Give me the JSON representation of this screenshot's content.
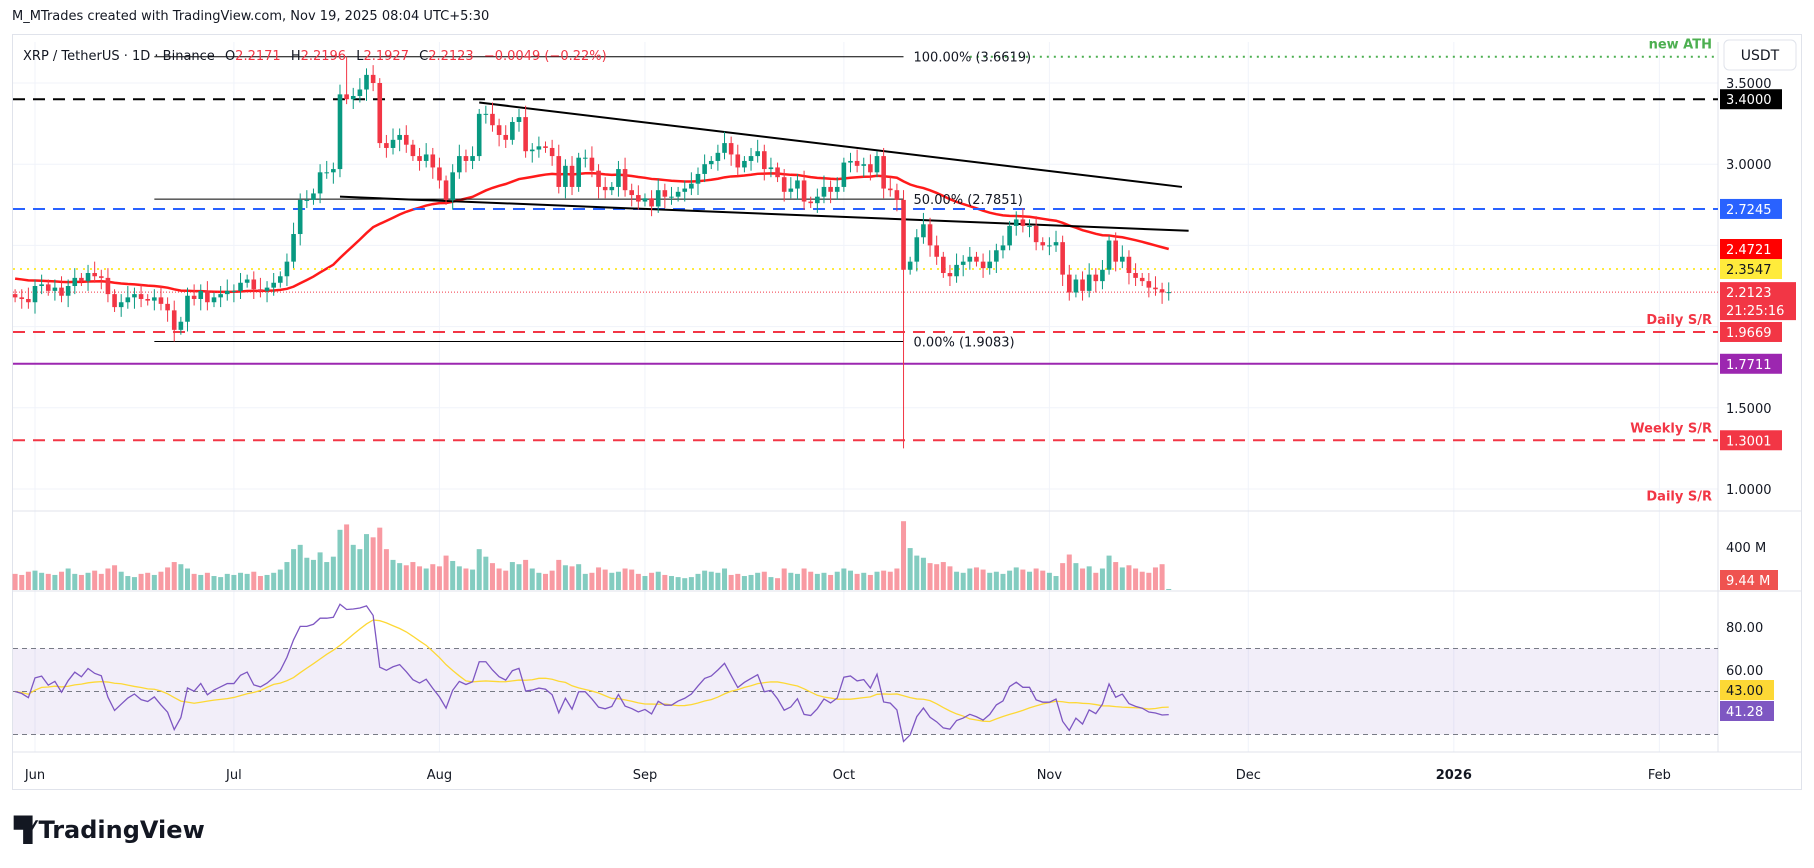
{
  "caption": "M_MTrades created with TradingView.com, Nov 19, 2025 08:04 UTC+5:30",
  "legend": {
    "symbol": "XRP / TetherUS · 1D · Binance",
    "o_label": "O",
    "o": "2.2171",
    "h_label": "H",
    "h": "2.2196",
    "l_label": "L",
    "l": "2.1927",
    "c_label": "C",
    "c": "2.2123",
    "change": "−0.0049 (−0.22%)"
  },
  "currency_button": "USDT",
  "brand": "TradingView",
  "colors": {
    "up": "#089981",
    "down": "#f23645",
    "ma": "#ff1a1a",
    "rsi": "#7e57c2",
    "rsi_ma": "#fdd835"
  },
  "chart_data": [
    {
      "type": "candlestick",
      "title": "XRP / TetherUS 1D Binance",
      "start_date": "2025-05-29",
      "ylim": [
        0.8,
        3.75
      ],
      "yticks": [
        "3.5000",
        "3.0000",
        "1.5000",
        "1.0000"
      ],
      "ytick_values": [
        3.5,
        3.0,
        1.5,
        1.0
      ],
      "xticks": [
        {
          "label": "Jun",
          "date": "2025-06-01"
        },
        {
          "label": "Jul",
          "date": "2025-07-01"
        },
        {
          "label": "Aug",
          "date": "2025-08-01"
        },
        {
          "label": "Sep",
          "date": "2025-09-01"
        },
        {
          "label": "Oct",
          "date": "2025-10-01"
        },
        {
          "label": "Nov",
          "date": "2025-11-01"
        },
        {
          "label": "Dec",
          "date": "2025-12-01"
        },
        {
          "label": "2026",
          "date": "2026-01-01"
        },
        {
          "label": "Feb",
          "date": "2026-02-01"
        }
      ],
      "closes": [
        2.18,
        2.17,
        2.15,
        2.25,
        2.26,
        2.22,
        2.24,
        2.19,
        2.25,
        2.3,
        2.28,
        2.33,
        2.31,
        2.3,
        2.2,
        2.12,
        2.15,
        2.18,
        2.2,
        2.17,
        2.16,
        2.18,
        2.14,
        2.1,
        1.98,
        2.03,
        2.19,
        2.17,
        2.22,
        2.15,
        2.18,
        2.2,
        2.22,
        2.22,
        2.27,
        2.29,
        2.23,
        2.22,
        2.24,
        2.27,
        2.31,
        2.4,
        2.57,
        2.78,
        2.78,
        2.82,
        2.95,
        2.95,
        2.97,
        3.43,
        3.4,
        3.42,
        3.46,
        3.55,
        3.5,
        3.13,
        3.1,
        3.15,
        3.18,
        3.12,
        3.05,
        3.02,
        3.06,
        2.98,
        2.9,
        2.78,
        2.95,
        3.05,
        3.02,
        3.05,
        3.31,
        3.31,
        3.24,
        3.18,
        3.15,
        3.26,
        3.29,
        3.08,
        3.09,
        3.11,
        3.1,
        3.05,
        2.86,
        2.99,
        2.86,
        3.04,
        3.04,
        2.96,
        2.86,
        2.84,
        2.86,
        2.97,
        2.84,
        2.81,
        2.77,
        2.79,
        2.74,
        2.84,
        2.8,
        2.8,
        2.83,
        2.85,
        2.88,
        2.94,
        3.0,
        3.02,
        3.07,
        3.13,
        3.06,
        2.98,
        3.02,
        3.05,
        3.08,
        2.97,
        2.98,
        2.92,
        2.83,
        2.85,
        2.9,
        2.77,
        2.76,
        2.8,
        2.86,
        2.83,
        2.86,
        3.01,
        3.02,
        2.99,
        3.0,
        2.95,
        3.05,
        2.85,
        2.84,
        2.78,
        2.35,
        2.4,
        2.55,
        2.63,
        2.5,
        2.43,
        2.33,
        2.31,
        2.38,
        2.4,
        2.43,
        2.4,
        2.36,
        2.4,
        2.47,
        2.5,
        2.62,
        2.66,
        2.62,
        2.62,
        2.52,
        2.5,
        2.5,
        2.52,
        2.32,
        2.21,
        2.29,
        2.22,
        2.32,
        2.28,
        2.35,
        2.53,
        2.4,
        2.43,
        2.33,
        2.3,
        2.28,
        2.24,
        2.23,
        2.21,
        2.2123
      ],
      "wick_overrides": [
        {
          "date": "2025-06-22",
          "low": 1.9083
        },
        {
          "date": "2025-07-18",
          "high": 3.6619
        },
        {
          "date": "2025-10-10",
          "low": 1.25
        }
      ],
      "ma_label": "2.4721",
      "horizontal_levels": [
        {
          "name": "ath-line",
          "price": 3.6619,
          "color": "#4caf50",
          "style": "dotted",
          "from": "2025-10-20"
        },
        {
          "name": "resistance-3-40",
          "price": 3.4,
          "color": "#000000",
          "style": "dashed",
          "label": "3.4000",
          "tag_bg": "#000000",
          "tag_fg": "#ffffff"
        },
        {
          "name": "level-2-7245",
          "price": 2.7245,
          "color": "#2962ff",
          "style": "dashed",
          "label": "2.7245",
          "tag_bg": "#2962ff",
          "tag_fg": "#ffffff"
        },
        {
          "name": "level-2-3547",
          "price": 2.3547,
          "color": "#ffeb3b",
          "style": "dotted",
          "label": "2.3547",
          "tag_bg": "#ffeb3b",
          "tag_fg": "#131722"
        },
        {
          "name": "last-price",
          "price": 2.2123,
          "color": "#f23645",
          "style": "fine",
          "label": "2.2123",
          "sub": "21:25:16",
          "tag_bg": "#f23645",
          "tag_fg": "#ffffff"
        },
        {
          "name": "daily-sr",
          "price": 1.9669,
          "color": "#f23645",
          "style": "dashed",
          "label": "1.9669",
          "tag_bg": "#f23645",
          "tag_fg": "#ffffff"
        },
        {
          "name": "level-1-7711",
          "price": 1.7711,
          "color": "#9c27b0",
          "style": "solid",
          "label": "1.7711",
          "tag_bg": "#9c27b0",
          "tag_fg": "#ffffff"
        },
        {
          "name": "weekly-sr",
          "price": 1.3001,
          "color": "#f23645",
          "style": "dashed",
          "label": "1.3001",
          "tag_bg": "#f23645",
          "tag_fg": "#ffffff"
        }
      ],
      "annotations": [
        {
          "text": "new ATH",
          "price": 3.6619,
          "color": "#4caf50"
        },
        {
          "text": "Daily S/R",
          "price": 1.9669,
          "color": "#f23645"
        },
        {
          "text": "Weekly S/R",
          "price": 1.3001,
          "color": "#f23645"
        },
        {
          "text": "Daily S/R",
          "price": 0.88,
          "color": "#f23645"
        }
      ],
      "fib": {
        "from": "2025-06-19",
        "to": "2025-10-10",
        "levels": [
          {
            "price": 3.6619,
            "label": "100.00% (3.6619)"
          },
          {
            "price": 2.7851,
            "label": "50.00% (2.7851)"
          },
          {
            "price": 1.9083,
            "label": "0.00% (1.9083)"
          }
        ]
      },
      "trendlines": [
        {
          "name": "upper-trendline",
          "p1": {
            "date": "2025-08-07",
            "price": 3.38
          },
          "p2": {
            "date": "2025-11-21",
            "price": 2.86
          }
        },
        {
          "name": "lower-trendline",
          "p1": {
            "date": "2025-07-17",
            "price": 2.8
          },
          "p2": {
            "date": "2025-11-22",
            "price": 2.59
          }
        }
      ]
    },
    {
      "type": "bar",
      "title": "Volume",
      "unit": "M",
      "ytick": "400 M",
      "ytick_value": 400,
      "last_label": "9.44 M",
      "values": [
        150,
        140,
        170,
        180,
        160,
        150,
        140,
        170,
        200,
        150,
        140,
        160,
        180,
        150,
        200,
        230,
        170,
        130,
        120,
        150,
        160,
        140,
        170,
        210,
        260,
        240,
        200,
        150,
        140,
        160,
        130,
        120,
        150,
        140,
        160,
        150,
        170,
        130,
        140,
        160,
        190,
        260,
        380,
        420,
        300,
        280,
        350,
        260,
        310,
        560,
        610,
        420,
        380,
        520,
        490,
        580,
        380,
        280,
        250,
        230,
        260,
        220,
        200,
        240,
        220,
        320,
        270,
        220,
        200,
        190,
        380,
        310,
        250,
        200,
        180,
        260,
        240,
        280,
        200,
        160,
        150,
        180,
        280,
        230,
        220,
        240,
        150,
        160,
        210,
        190,
        160,
        170,
        200,
        190,
        150,
        130,
        160,
        170,
        140,
        130,
        120,
        110,
        120,
        150,
        180,
        170,
        160,
        200,
        140,
        150,
        130,
        140,
        160,
        170,
        120,
        110,
        200,
        160,
        150,
        200,
        170,
        150,
        160,
        140,
        170,
        200,
        180,
        150,
        160,
        140,
        170,
        180,
        170,
        200,
        640,
        390,
        320,
        300,
        250,
        240,
        260,
        220,
        170,
        160,
        200,
        210,
        190,
        160,
        170,
        150,
        180,
        210,
        190,
        170,
        200,
        180,
        160,
        130,
        250,
        330,
        250,
        200,
        220,
        160,
        200,
        320,
        260,
        210,
        230,
        200,
        170,
        160,
        210,
        240,
        9.44
      ]
    },
    {
      "type": "line",
      "title": "RSI 14",
      "yticks": [
        "80.00",
        "60.00"
      ],
      "ytick_values": [
        80,
        60
      ],
      "bands": [
        70,
        50,
        30
      ],
      "rsi_ma_label": "43.00",
      "rsi_label": "41.28"
    }
  ]
}
